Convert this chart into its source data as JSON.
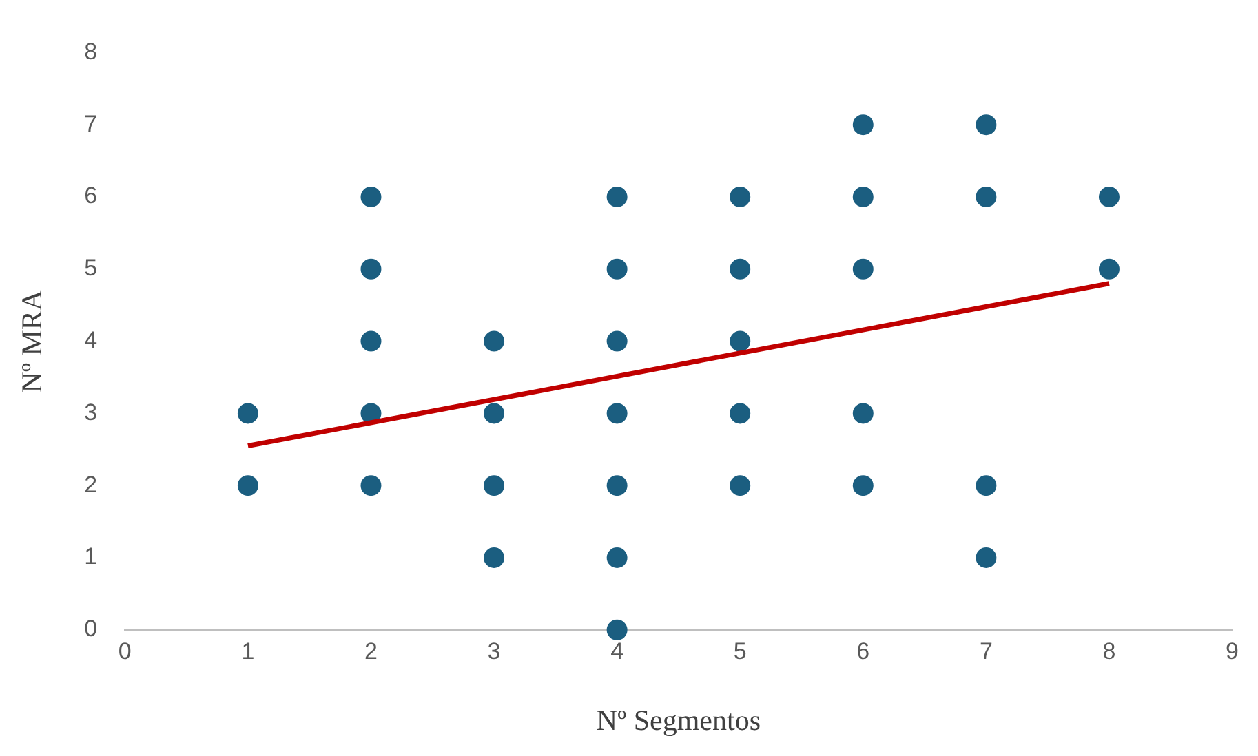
{
  "chart_data": {
    "type": "scatter",
    "xlabel": "Nº Segmentos",
    "ylabel": "Nº MRA",
    "xlim": [
      0,
      9
    ],
    "xticks": [
      0,
      1,
      2,
      3,
      4,
      5,
      6,
      7,
      8,
      9
    ],
    "ylim": [
      0,
      8
    ],
    "yticks": [
      0,
      1,
      2,
      3,
      4,
      5,
      6,
      7,
      8
    ],
    "grid": false,
    "legend": false,
    "marker": "circle",
    "series": [
      {
        "type": "scatter",
        "color": "#1b5e80",
        "x": [
          1,
          1,
          2,
          2,
          2,
          2,
          2,
          3,
          3,
          3,
          3,
          4,
          4,
          4,
          4,
          4,
          4,
          4,
          5,
          5,
          5,
          5,
          5,
          6,
          6,
          6,
          6,
          6,
          7,
          7,
          7,
          7,
          8,
          8
        ],
        "values": [
          3,
          2,
          6,
          5,
          4,
          3,
          2,
          4,
          3,
          2,
          1,
          6,
          5,
          4,
          3,
          2,
          1,
          0,
          6,
          5,
          4,
          3,
          2,
          7,
          6,
          5,
          3,
          2,
          7,
          6,
          2,
          1,
          6,
          5
        ]
      },
      {
        "type": "line",
        "color": "#c00000",
        "line_style": "solid",
        "marker": "none",
        "x": [
          1,
          8
        ],
        "values": [
          2.55,
          4.8
        ]
      }
    ]
  }
}
